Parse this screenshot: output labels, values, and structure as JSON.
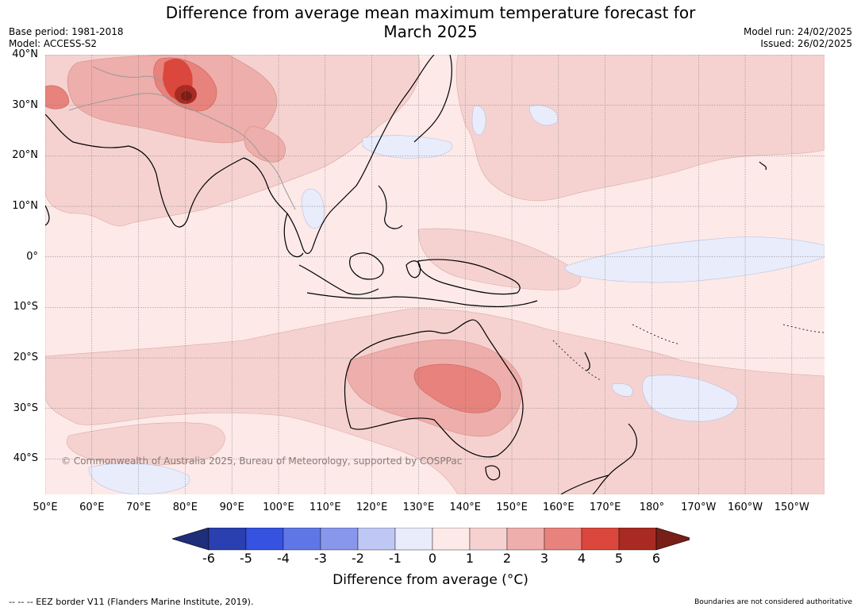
{
  "title": {
    "line1": "Difference from average mean maximum temperature forecast for",
    "line2": "March 2025"
  },
  "meta": {
    "base_period": "Base period: 1981-2018",
    "model": "Model: ACCESS-S2",
    "model_run": "Model run: 24/02/2025",
    "issued": "Issued: 26/02/2025"
  },
  "map": {
    "lat_labels": [
      "40°N",
      "30°N",
      "20°N",
      "10°N",
      "0°",
      "10°S",
      "20°S",
      "30°S",
      "40°S"
    ],
    "lat_values": [
      40,
      30,
      20,
      10,
      0,
      -10,
      -20,
      -30,
      -40
    ],
    "lon_labels": [
      "50°E",
      "60°E",
      "70°E",
      "80°E",
      "90°E",
      "100°E",
      "110°E",
      "120°E",
      "130°E",
      "140°E",
      "150°E",
      "160°E",
      "170°E",
      "180°",
      "170°W",
      "160°W",
      "150°W"
    ],
    "lon_values": [
      50,
      60,
      70,
      80,
      90,
      100,
      110,
      120,
      130,
      140,
      150,
      160,
      170,
      180,
      190,
      200,
      210
    ],
    "extent": {
      "lon_min": 50,
      "lon_max": 217,
      "lat_min": -47,
      "lat_max": 40
    },
    "copyright": "© Commonwealth of Australia 2025, Bureau of Meteorology, supported by COSPPac"
  },
  "colorbar": {
    "ticks": [
      "-6",
      "-5",
      "-4",
      "-3",
      "-2",
      "-1",
      "0",
      "1",
      "2",
      "3",
      "4",
      "5",
      "6"
    ],
    "colors": [
      "#1f2e7a",
      "#2a3fb0",
      "#3552e0",
      "#5f76e6",
      "#8897ec",
      "#bfc7f5",
      "#e9ecfb",
      "#fce9e8",
      "#f5d2d0",
      "#eeaeab",
      "#e8827c",
      "#db473d",
      "#a82a22",
      "#7a1e18"
    ],
    "label": "Difference from average (",
    "label_unit": "°C",
    "label_close": ")"
  },
  "footer": {
    "eez_note": "--  --  -- EEZ border V11 (Flanders Marine Institute, 2019).",
    "disclaimer": "Boundaries are not considered authoritative"
  }
}
